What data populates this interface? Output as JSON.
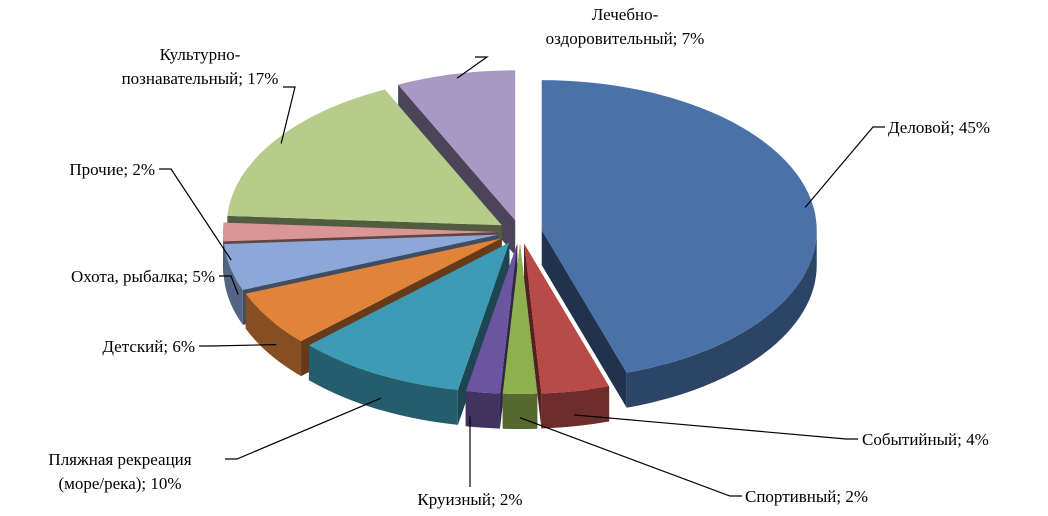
{
  "chart_data": {
    "type": "pie3d",
    "values": [
      45,
      4,
      2,
      2,
      10,
      6,
      5,
      2,
      17,
      7
    ],
    "value_labels": [
      "Деловой; 45%",
      "Событийный; 4%",
      "Спортивный; 2%",
      "Круизный; 2%",
      "Пляжная рекреация\n(море/река); 10%",
      "Детский; 6%",
      "Охота, рыбалка; 5%",
      "Прочие; 2%",
      "Культурно-\nпознавательный; 17%",
      "Лечебно-\nоздоровительный; 7%"
    ],
    "colors": [
      "#4a72a8",
      "#b84a48",
      "#8fb04f",
      "#6b55a0",
      "#3e9bb5",
      "#e0843a",
      "#8ba8d8",
      "#d99694",
      "#b6cc8a",
      "#a898c4"
    ]
  }
}
